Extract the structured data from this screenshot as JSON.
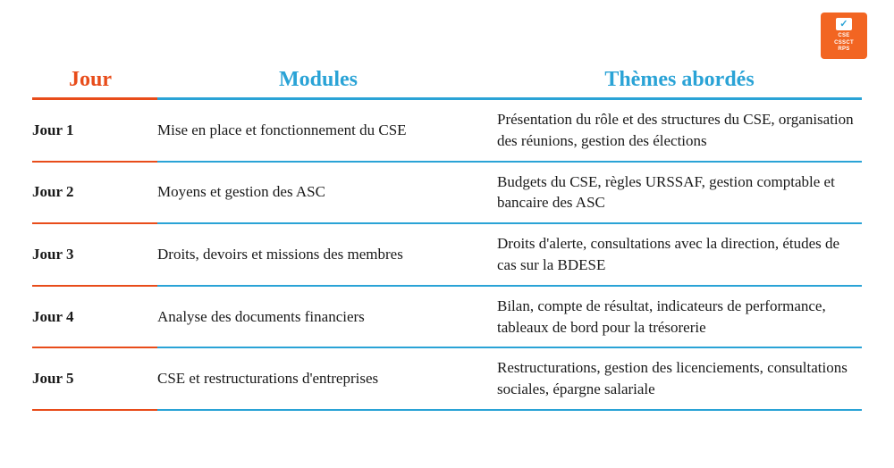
{
  "badge": {
    "lines": [
      "CSE",
      "CSSCT",
      "RPS"
    ],
    "bg_color": "#f26522",
    "text_color": "#ffffff",
    "check_color": "#2aa3d6"
  },
  "colors": {
    "jour_accent": "#e84c1a",
    "modules_accent": "#2aa3d6",
    "themes_accent": "#2aa3d6",
    "body_text": "#1a1a1a",
    "background": "#ffffff"
  },
  "fonts": {
    "header_size_pt": 18,
    "body_size_pt": 13,
    "family": "serif"
  },
  "columns": {
    "jour": "Jour",
    "modules": "Modules",
    "themes": "Thèmes abordés"
  },
  "rows": [
    {
      "jour": "Jour 1",
      "module": "Mise en place et fonctionnement du CSE",
      "theme": "Présentation du rôle et des structures du CSE, organisation des réunions, gestion des élections"
    },
    {
      "jour": "Jour 2",
      "module": "Moyens et gestion des ASC",
      "theme": "Budgets du CSE, règles URSSAF, gestion comptable et bancaire des ASC"
    },
    {
      "jour": "Jour 3",
      "module": "Droits, devoirs et missions des membres",
      "theme": "Droits d'alerte, consultations avec la direction, études de cas sur la BDESE"
    },
    {
      "jour": "Jour 4",
      "module": "Analyse des documents financiers",
      "theme": "Bilan, compte de résultat, indicateurs de performance, tableaux de bord pour la trésorerie"
    },
    {
      "jour": "Jour 5",
      "module": "CSE et restructurations d'entreprises",
      "theme": "Restructurations, gestion des licenciements, consultations sociales, épargne salariale"
    }
  ]
}
